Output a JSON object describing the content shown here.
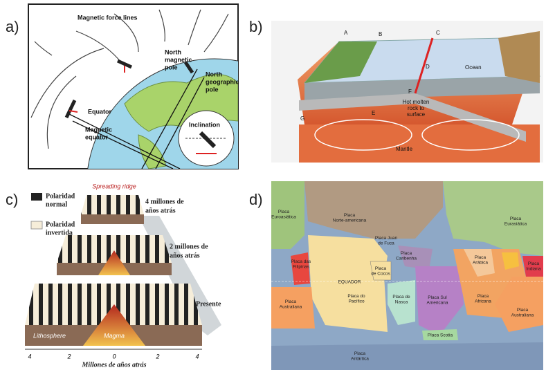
{
  "panels": {
    "a": {
      "label": "a)",
      "force_lines": "Magnetic force lines",
      "north_magnetic_pole": [
        "North",
        "magnetic",
        "pole"
      ],
      "north_geographic_pole": [
        "North",
        "geographic",
        "pole"
      ],
      "equator": "Equator",
      "magnetic_equator": [
        "Magnetic",
        "equator"
      ],
      "inclination": "Inclination"
    },
    "b": {
      "label": "b)",
      "ocean": "Ocean",
      "hot_rock": [
        "Hot molten",
        "rock to",
        "surface"
      ],
      "mantle": "Mantle",
      "markers": [
        "A",
        "B",
        "C",
        "D",
        "E",
        "F",
        "G"
      ]
    },
    "c": {
      "label": "c)",
      "ridge": "Spreading ridge",
      "normal": [
        "Polaridad",
        "normal"
      ],
      "reversed": [
        "Polaridad",
        "invertida"
      ],
      "age4": [
        "4 millones de",
        "años atrás"
      ],
      "age2": [
        "2 millones de",
        "años atrás"
      ],
      "present": "Presente",
      "lithosphere": "Lithosphere",
      "magma": "Magma",
      "axis_ticks": [
        "4",
        "2",
        "0",
        "2",
        "4"
      ],
      "axis_title": "Millones de años atrás"
    },
    "d": {
      "label": "d)",
      "plates": [
        [
          "Placa",
          "Euroasiática"
        ],
        [
          "Placa",
          "Norte-americana"
        ],
        [
          "Placa Juan",
          "de Fuca"
        ],
        [
          "Placa",
          "Eurasiática"
        ],
        [
          "Placa das",
          "Filipinas"
        ],
        [
          "Placa",
          "Caribenha"
        ],
        [
          "Placa",
          "de Cocos"
        ],
        [
          "Placa",
          "Arábica"
        ],
        [
          "Placa",
          "Indiana"
        ],
        [
          "Placa",
          "Australiana"
        ],
        [
          "Placa do",
          "Pacífico"
        ],
        [
          "Placa de",
          "Nasca"
        ],
        [
          "Placa Sul",
          "Americana"
        ],
        [
          "Placa",
          "Africana"
        ],
        [
          "Placa",
          "Australiana"
        ],
        [
          "Placa Scotia"
        ],
        [
          "Placa",
          "Antártica"
        ]
      ],
      "equator": "EQUADOR"
    }
  }
}
